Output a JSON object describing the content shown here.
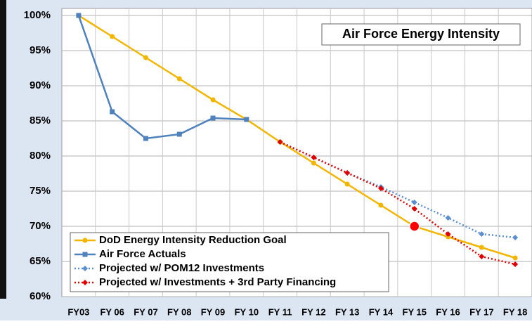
{
  "chart_data": {
    "type": "line",
    "title": "Air Force Energy Intensity",
    "categories": [
      "FY03",
      "FY 06",
      "FY 07",
      "FY 08",
      "FY 09",
      "FY 10",
      "FY 11",
      "FY 12",
      "FY 13",
      "FY 14",
      "FY 15",
      "FY 16",
      "FY 17",
      "FY 18"
    ],
    "series": [
      {
        "name": "DoD Energy Intensity Reduction Goal",
        "color": "#f2b600",
        "dash": false,
        "marker": "circle",
        "values": [
          100,
          97,
          94,
          91,
          88,
          85.2,
          82,
          79,
          76,
          73,
          70,
          68.5,
          67,
          65.5
        ]
      },
      {
        "name": "Air Force Actuals",
        "color": "#4f81bd",
        "dash": false,
        "marker": "square",
        "values": [
          100,
          86.3,
          82.5,
          83.1,
          85.4,
          85.2,
          null,
          null,
          null,
          null,
          null,
          null,
          null,
          null
        ]
      },
      {
        "name": "Projected w/ POM12 Investments",
        "color": "#5b8fd0",
        "dash": true,
        "marker": "diamond",
        "values": [
          null,
          null,
          null,
          null,
          null,
          null,
          82,
          79.8,
          77.6,
          75.6,
          73.4,
          71.2,
          68.9,
          68.4
        ]
      },
      {
        "name": "Projected w/ Investments + 3rd Party Financing",
        "color": "#e00000",
        "dash": true,
        "marker": "diamond",
        "values": [
          null,
          null,
          null,
          null,
          null,
          null,
          82,
          79.8,
          77.6,
          75.4,
          72.5,
          68.9,
          65.7,
          64.6
        ]
      }
    ],
    "ylim": [
      60,
      100
    ],
    "yticks": [
      {
        "value": 60,
        "label": "60%"
      },
      {
        "value": 65,
        "label": "65%"
      },
      {
        "value": 70,
        "label": "70%"
      },
      {
        "value": 75,
        "label": "75%"
      },
      {
        "value": 80,
        "label": "80%"
      },
      {
        "value": 85,
        "label": "85%"
      },
      {
        "value": 90,
        "label": "90%"
      },
      {
        "value": 95,
        "label": "95%"
      },
      {
        "value": 100,
        "label": "100%"
      }
    ],
    "grid": true,
    "legend": "lower left"
  }
}
